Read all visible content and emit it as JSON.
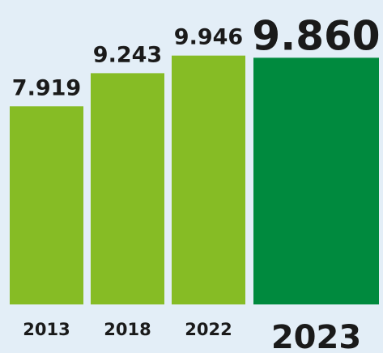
{
  "chart_data": {
    "type": "bar",
    "title": "",
    "xlabel": "",
    "ylabel": "",
    "categories": [
      "2013",
      "2018",
      "2022",
      "2023"
    ],
    "values": [
      7.919,
      9.243,
      9.946,
      9.86
    ],
    "value_labels": [
      "7.919",
      "9.243",
      "9.946",
      "9.860"
    ],
    "highlight_index": 3,
    "ylim": [
      0,
      10.5
    ],
    "grid": false,
    "legend": "none",
    "colors": {
      "bar": "#86bc25",
      "highlight": "#008a3e",
      "background": "#e3eef7",
      "text": "#1a1a1a"
    }
  }
}
